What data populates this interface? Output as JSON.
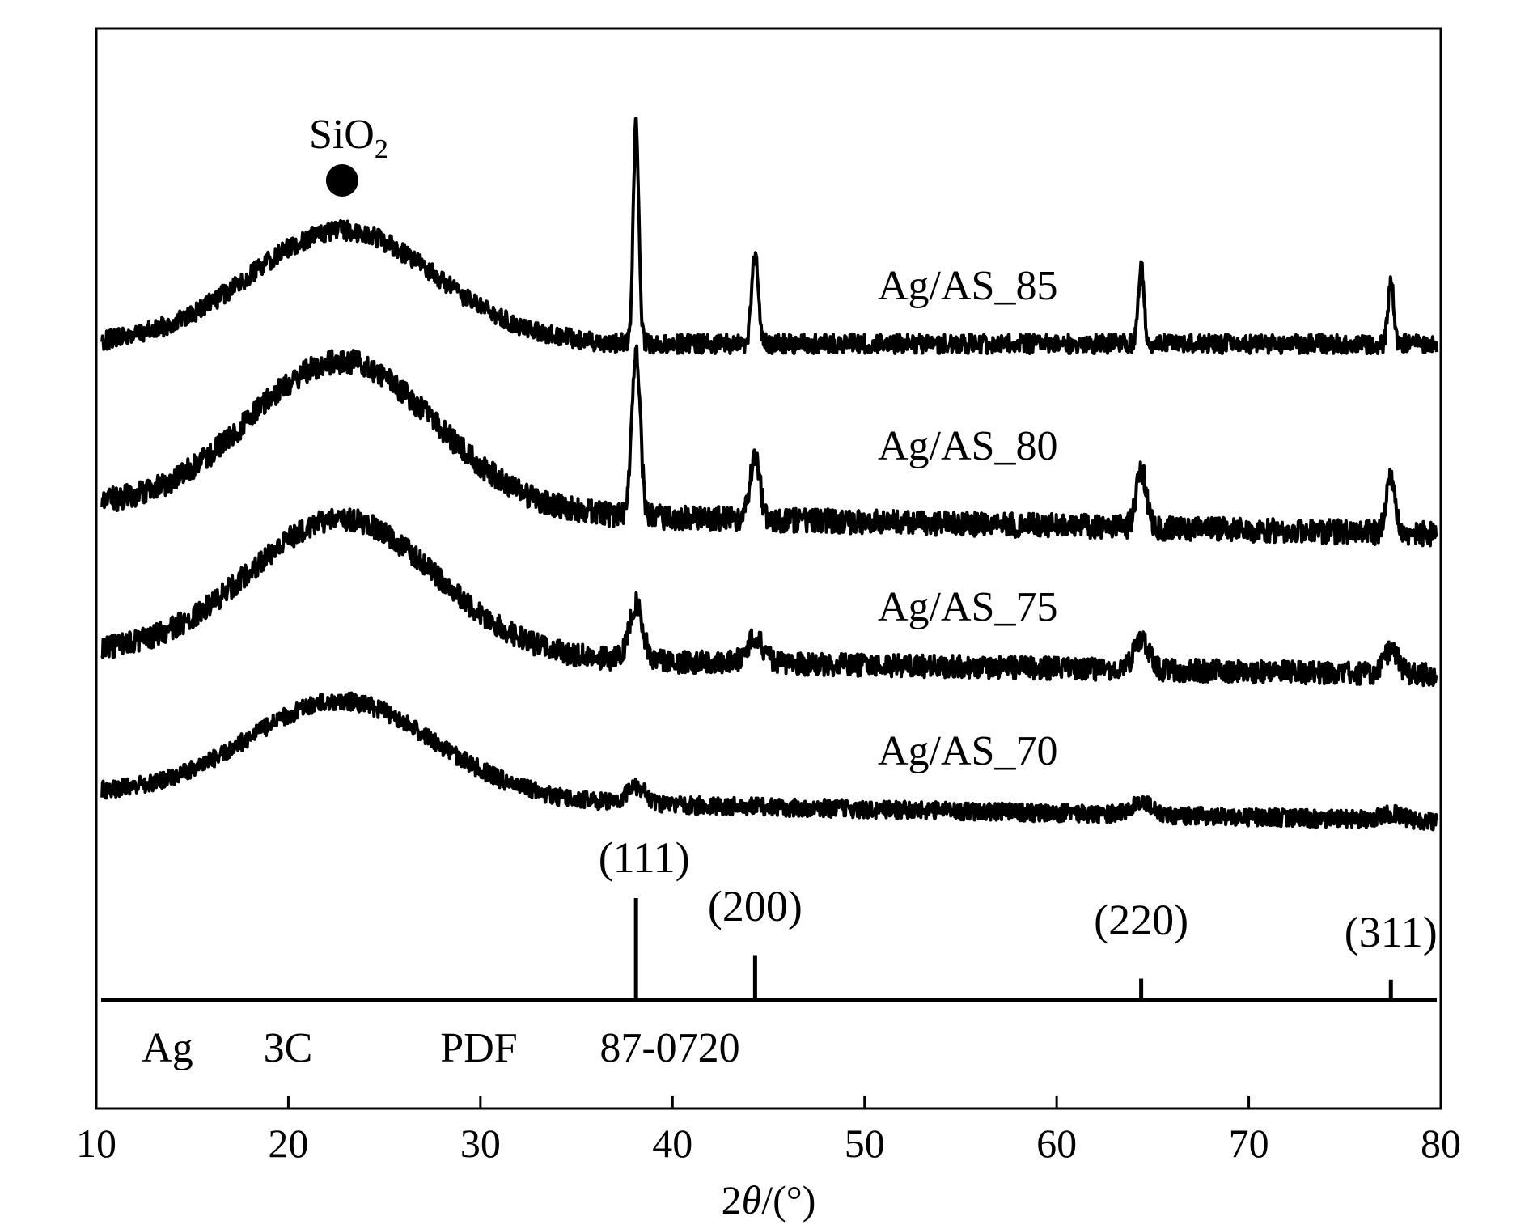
{
  "chart_data": {
    "type": "line",
    "xlabel": {
      "pre": "2",
      "theta": "θ",
      "post": "/(°)"
    },
    "xlim": [
      10,
      80
    ],
    "x_ticks": [
      "10",
      "20",
      "30",
      "40",
      "50",
      "60",
      "70",
      "80"
    ],
    "y_ticks": [],
    "grid": false,
    "legend": "none",
    "series": [
      {
        "name": "Ag/AS_85",
        "amorphous_center": 22.8,
        "ag_peak_intensity": "strong"
      },
      {
        "name": "Ag/AS_80",
        "amorphous_center": 22.8,
        "ag_peak_intensity": "medium"
      },
      {
        "name": "Ag/AS_75",
        "amorphous_center": 22.8,
        "ag_peak_intensity": "weak"
      },
      {
        "name": "Ag/AS_70",
        "amorphous_center": 22.8,
        "ag_peak_intensity": "very weak"
      }
    ],
    "annotations": {
      "sio2_label_main": "SiO",
      "sio2_label_sub": "2",
      "sio2_marker_x": 22.8
    },
    "reference_pattern": {
      "label_parts": [
        "Ag",
        "3C",
        "PDF",
        "87-0720"
      ],
      "peaks": [
        {
          "x": 38.1,
          "label": "(111)",
          "relative_intensity": 100
        },
        {
          "x": 44.3,
          "label": "(200)",
          "relative_intensity": 44
        },
        {
          "x": 64.4,
          "label": "(220)",
          "relative_intensity": 21
        },
        {
          "x": 77.4,
          "label": "(311)",
          "relative_intensity": 20
        }
      ]
    },
    "colors": {
      "line": "#000000",
      "background": "#ffffff"
    }
  }
}
